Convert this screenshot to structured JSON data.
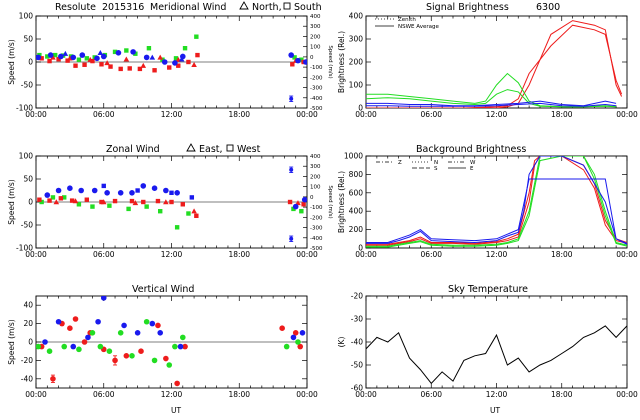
{
  "header": {
    "station": "Resolute",
    "date": "2015316",
    "wavelength": "6300"
  },
  "colors": {
    "red": "#ee1c1c",
    "green": "#22dd22",
    "blue": "#1a1aee",
    "black": "#000000"
  },
  "chart_data": [
    {
      "id": "meridional",
      "type": "scatter",
      "title": "Meridional Wind",
      "legend_text": [
        "North,",
        "South"
      ],
      "ylabel": "Speed (m/s)",
      "ylabel_right": "Speed (m/s)",
      "ylim": [
        -100,
        100
      ],
      "ylim_right": [
        -500,
        400
      ],
      "yticks": [
        -100,
        -50,
        0,
        50,
        100
      ],
      "yticks_right": [
        -500,
        -400,
        -300,
        -200,
        -100,
        0,
        100,
        200,
        300,
        400
      ],
      "xlim": [
        0,
        24
      ],
      "series": [
        {
          "color": "#22dd22",
          "marker": "square",
          "x": [
            0.3,
            1.0,
            1.7,
            2.4,
            3.1,
            3.8,
            4.5,
            5.2,
            6.1,
            7.0,
            8.0,
            8.8,
            10.0,
            11.2,
            12.4,
            13.2,
            14.2,
            22.9,
            23.5
          ],
          "y": [
            15,
            12,
            15,
            14,
            12,
            5,
            8,
            10,
            15,
            22,
            25,
            18,
            30,
            5,
            8,
            30,
            55,
            10,
            5
          ]
        },
        {
          "color": "#ee1c1c",
          "marker": "square",
          "x": [
            0.5,
            1.2,
            2.0,
            2.8,
            3.5,
            4.3,
            5.0,
            5.8,
            6.6,
            7.5,
            8.3,
            9.2,
            10.5,
            11.8,
            12.6,
            13.5,
            14.3,
            22.7,
            23.7
          ],
          "y": [
            8,
            2,
            6,
            3,
            -8,
            -6,
            2,
            -5,
            -10,
            -15,
            -14,
            -15,
            -18,
            -12,
            -8,
            0,
            15,
            -5,
            0
          ]
        },
        {
          "color": "#ee1c1c",
          "marker": "triangle",
          "x": [
            1.5,
            3.0,
            4.8,
            6.3,
            8.0,
            9.5,
            11.0,
            12.6,
            14.0,
            23.0
          ],
          "y": [
            10,
            8,
            5,
            -2,
            6,
            -8,
            10,
            5,
            -6,
            3
          ]
        },
        {
          "color": "#1a1aee",
          "marker": "dot",
          "x": [
            0.2,
            1.3,
            2.2,
            3.3,
            4.1,
            5.4,
            6.0,
            7.3,
            8.6,
            9.8,
            11.4,
            12.3,
            13.0,
            22.6,
            23.2,
            23.9
          ],
          "y": [
            10,
            15,
            12,
            10,
            15,
            8,
            12,
            20,
            22,
            10,
            0,
            -2,
            12,
            15,
            3,
            0
          ]
        },
        {
          "color": "#1a1aee",
          "marker": "triangle",
          "x": [
            2.6,
            5.7,
            10.3,
            12.9
          ],
          "y": [
            18,
            20,
            10,
            6
          ]
        }
      ],
      "errorbars": [
        {
          "x": 22.6,
          "y": -80,
          "err": 6,
          "color": "#1a1aee"
        }
      ]
    },
    {
      "id": "signal",
      "type": "line",
      "title": "Signal Brightness",
      "legend": [
        "Zenith",
        "NSWE Average"
      ],
      "ylabel": "Brightness (Rel.)",
      "ylim": [
        0,
        400
      ],
      "yticks": [
        0,
        100,
        200,
        300,
        400
      ],
      "xlim": [
        0,
        24
      ],
      "series": [
        {
          "color": "#ee1c1c",
          "x": [
            0,
            3,
            6,
            9,
            12,
            13,
            14,
            15,
            17,
            19,
            21,
            22,
            23,
            23.5
          ],
          "y": [
            0,
            0,
            0,
            0,
            0,
            5,
            20,
            100,
            320,
            380,
            360,
            340,
            100,
            50
          ]
        },
        {
          "color": "#ee1c1c",
          "x": [
            0,
            3,
            6,
            9,
            12,
            13,
            14,
            15,
            17,
            19,
            21,
            22,
            23,
            23.5
          ],
          "y": [
            0,
            0,
            0,
            0,
            5,
            10,
            40,
            150,
            270,
            360,
            340,
            320,
            120,
            60
          ]
        },
        {
          "color": "#22dd22",
          "x": [
            0,
            2,
            4,
            6,
            8,
            10,
            11,
            12,
            13,
            14,
            15,
            16,
            18,
            20,
            22,
            23
          ],
          "y": [
            60,
            60,
            50,
            40,
            30,
            20,
            30,
            100,
            150,
            110,
            30,
            10,
            5,
            5,
            10,
            5
          ]
        },
        {
          "color": "#22dd22",
          "x": [
            0,
            2,
            4,
            6,
            8,
            10,
            11,
            12,
            13,
            14,
            15,
            16,
            18,
            20,
            22,
            23
          ],
          "y": [
            40,
            45,
            40,
            30,
            20,
            15,
            20,
            60,
            80,
            70,
            20,
            8,
            5,
            5,
            8,
            5
          ]
        },
        {
          "color": "#1a1aee",
          "x": [
            0,
            2,
            4,
            6,
            8,
            10,
            12,
            14,
            16,
            18,
            20,
            22,
            23
          ],
          "y": [
            20,
            20,
            15,
            15,
            10,
            10,
            15,
            20,
            30,
            15,
            10,
            30,
            20
          ]
        },
        {
          "color": "#1a1aee",
          "x": [
            0,
            2,
            4,
            6,
            8,
            10,
            12,
            14,
            16,
            18,
            20,
            22,
            23
          ],
          "y": [
            10,
            10,
            8,
            8,
            8,
            8,
            10,
            15,
            20,
            10,
            8,
            15,
            10
          ]
        }
      ]
    },
    {
      "id": "zonal",
      "type": "scatter",
      "title": "Zonal Wind",
      "legend_text": [
        "East,",
        "West"
      ],
      "ylabel": "Speed (m/s)",
      "ylabel_right": "Speed (m/s)",
      "ylim": [
        -100,
        100
      ],
      "ylim_right": [
        -500,
        400
      ],
      "yticks": [
        -100,
        -50,
        0,
        50,
        100
      ],
      "yticks_right": [
        -500,
        -400,
        -300,
        -200,
        -100,
        0,
        100,
        200,
        300,
        400
      ],
      "xlim": [
        0,
        24
      ],
      "series": [
        {
          "color": "#22dd22",
          "marker": "square",
          "x": [
            0.5,
            1.5,
            2.5,
            3.8,
            5.0,
            6.5,
            8.2,
            9.8,
            11.0,
            12.5,
            13.5,
            22.8,
            23.5
          ],
          "y": [
            0,
            10,
            10,
            -5,
            -10,
            -8,
            -15,
            -10,
            -20,
            -55,
            -25,
            -15,
            -20
          ]
        },
        {
          "color": "#ee1c1c",
          "marker": "square",
          "x": [
            0.3,
            1.2,
            2.2,
            3.2,
            4.5,
            5.8,
            7.0,
            8.5,
            9.5,
            10.8,
            12.0,
            13.0,
            14.2,
            22.5,
            23.7
          ],
          "y": [
            5,
            3,
            8,
            3,
            5,
            0,
            2,
            2,
            0,
            2,
            0,
            -5,
            -30,
            0,
            -5
          ]
        },
        {
          "color": "#ee1c1c",
          "marker": "triangle",
          "x": [
            1.8,
            3.5,
            6.0,
            8.8,
            11.5,
            14.0,
            23.2
          ],
          "y": [
            0,
            2,
            0,
            -2,
            0,
            -20,
            -2
          ]
        },
        {
          "color": "#1a1aee",
          "marker": "dot",
          "x": [
            1.0,
            2.0,
            3.0,
            4.0,
            5.2,
            6.3,
            7.5,
            8.5,
            9.5,
            10.5,
            11.5,
            12.5,
            23.0,
            23.8
          ],
          "y": [
            15,
            25,
            30,
            25,
            25,
            20,
            20,
            20,
            35,
            30,
            25,
            20,
            -10,
            5
          ]
        },
        {
          "color": "#1a1aee",
          "marker": "square",
          "x": [
            6.0,
            9.0,
            12.0,
            13.8
          ],
          "y": [
            35,
            25,
            20,
            10
          ]
        }
      ],
      "errorbars": [
        {
          "x": 22.6,
          "y": 70,
          "err": 6,
          "color": "#1a1aee"
        },
        {
          "x": 22.6,
          "y": -80,
          "err": 6,
          "color": "#1a1aee"
        }
      ]
    },
    {
      "id": "background",
      "type": "line",
      "title": "Background Brightness",
      "legend": [
        "Z",
        "N",
        "S",
        "W",
        "E"
      ],
      "ylabel": "Brightness (Rel.)",
      "ylim": [
        0,
        1000
      ],
      "yticks": [
        0,
        200,
        400,
        600,
        800,
        1000
      ],
      "xlim": [
        0,
        24
      ],
      "series": [
        {
          "color": "#ee1c1c",
          "x": [
            0,
            2,
            3,
            4,
            5,
            6,
            8,
            10,
            12,
            13,
            14,
            15,
            15.5,
            16,
            18,
            20,
            21,
            22,
            23,
            24
          ],
          "y": [
            40,
            40,
            60,
            80,
            120,
            60,
            60,
            50,
            70,
            100,
            150,
            600,
            950,
            1000,
            1000,
            900,
            700,
            300,
            100,
            60
          ]
        },
        {
          "color": "#ee1c1c",
          "x": [
            0,
            2,
            3,
            4,
            5,
            6,
            8,
            10,
            12,
            13,
            14,
            15,
            15.5,
            16,
            18,
            20,
            21,
            22,
            23,
            24
          ],
          "y": [
            30,
            30,
            50,
            70,
            100,
            50,
            50,
            40,
            60,
            80,
            120,
            500,
            900,
            1000,
            1000,
            850,
            650,
            250,
            80,
            50
          ]
        },
        {
          "color": "#22dd22",
          "x": [
            0,
            2,
            3,
            4,
            5,
            6,
            8,
            10,
            12,
            13,
            14,
            15,
            16,
            18,
            20,
            21,
            22,
            23,
            24
          ],
          "y": [
            20,
            20,
            40,
            60,
            80,
            40,
            30,
            30,
            40,
            60,
            100,
            400,
            1000,
            1000,
            1000,
            800,
            400,
            60,
            30
          ]
        },
        {
          "color": "#22dd22",
          "x": [
            0,
            2,
            3,
            4,
            5,
            6,
            8,
            10,
            12,
            13,
            14,
            15,
            16,
            18,
            20,
            21,
            22,
            23,
            24
          ],
          "y": [
            10,
            10,
            30,
            50,
            70,
            30,
            20,
            20,
            30,
            50,
            80,
            350,
            950,
            1000,
            1000,
            750,
            350,
            50,
            20
          ]
        },
        {
          "color": "#1a1aee",
          "x": [
            0,
            2,
            3,
            4,
            5,
            6,
            8,
            10,
            12,
            13,
            14,
            15,
            22,
            23,
            24
          ],
          "y": [
            60,
            60,
            100,
            140,
            200,
            100,
            90,
            80,
            100,
            150,
            200,
            750,
            750,
            100,
            50
          ]
        },
        {
          "color": "#1a1aee",
          "x": [
            0,
            2,
            3,
            4,
            5,
            6,
            8,
            10,
            12,
            13,
            14,
            14.5,
            15,
            16,
            18,
            20,
            22,
            23,
            24
          ],
          "y": [
            50,
            50,
            80,
            120,
            180,
            80,
            70,
            60,
            80,
            130,
            170,
            400,
            800,
            1000,
            1000,
            900,
            500,
            100,
            40
          ]
        }
      ]
    },
    {
      "id": "vertical",
      "type": "scatter",
      "title": "Vertical Wind",
      "ylabel": "Speed (m/s)",
      "ylim": [
        -50,
        50
      ],
      "yticks": [
        -40,
        -20,
        0,
        20,
        40
      ],
      "xlim": [
        0,
        24
      ],
      "series": [
        {
          "color": "#ee1c1c",
          "marker": "dot",
          "x": [
            0.5,
            1.5,
            2.3,
            3.0,
            3.5,
            4.3,
            4.8,
            6.0,
            7.0,
            8.0,
            9.3,
            10.8,
            11.5,
            12.5,
            13.2,
            21.8,
            23.0,
            23.4
          ],
          "y": [
            -5,
            -40,
            20,
            15,
            25,
            0,
            10,
            -8,
            -20,
            -15,
            -10,
            18,
            -18,
            -45,
            -5,
            15,
            10,
            -5
          ]
        },
        {
          "color": "#22dd22",
          "marker": "dot",
          "x": [
            0.2,
            1.2,
            2.5,
            3.8,
            5.0,
            5.7,
            6.5,
            7.5,
            8.5,
            9.8,
            10.5,
            11.8,
            12.3,
            13.0,
            22.2,
            23.2
          ],
          "y": [
            -5,
            -10,
            -5,
            -8,
            10,
            -5,
            -10,
            10,
            -15,
            22,
            -20,
            -25,
            -5,
            5,
            -5,
            0
          ]
        },
        {
          "color": "#1a1aee",
          "marker": "dot",
          "x": [
            0.8,
            2.0,
            3.3,
            4.6,
            5.5,
            6.0,
            7.8,
            9.0,
            10.3,
            11.0,
            12.8,
            22.8,
            23.6
          ],
          "y": [
            0,
            22,
            -5,
            5,
            22,
            48,
            18,
            10,
            20,
            10,
            -5,
            5,
            10
          ]
        }
      ],
      "errorbars": [
        {
          "x": 1.5,
          "y": -40,
          "err": 4,
          "color": "#ee1c1c"
        },
        {
          "x": 7.0,
          "y": -20,
          "err": 5,
          "color": "#ee1c1c"
        }
      ]
    },
    {
      "id": "sky",
      "type": "line",
      "title": "Sky Temperature",
      "ylabel": "(K)",
      "ylim": [
        -60,
        -20
      ],
      "yticks": [
        -60,
        -50,
        -40,
        -30,
        -20
      ],
      "xlim": [
        0,
        24
      ],
      "series": [
        {
          "color": "#000000",
          "x": [
            0,
            1,
            2,
            3,
            4,
            5,
            6,
            7,
            8,
            9,
            10,
            11,
            12,
            13,
            14,
            15,
            16,
            17,
            18,
            19,
            20,
            21,
            22,
            23,
            24
          ],
          "y": [
            -43,
            -38,
            -40,
            -36,
            -47,
            -52,
            -58,
            -53,
            -57,
            -48,
            -46,
            -45,
            -37,
            -50,
            -47,
            -53,
            -50,
            -48,
            -45,
            -42,
            -38,
            -36,
            -33,
            -38,
            -33
          ]
        }
      ]
    }
  ],
  "x_axis": {
    "label": "UT",
    "ticks": [
      "00:00",
      "06:00",
      "12:00",
      "18:00",
      "00:00"
    ]
  }
}
